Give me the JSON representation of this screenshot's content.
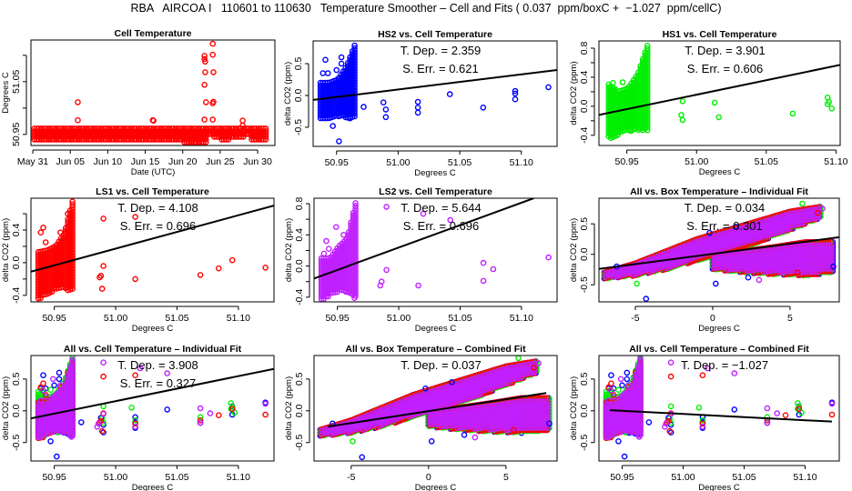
{
  "title": "RBA   AIRCOA I   110601 to 110630   Temperature Smoother – Cell and Fits ( 0.037  ppm/boxC +  −1.027  ppm/cellC)",
  "colors": {
    "hs2": "#0000ff",
    "hs1": "#00ee00",
    "ls1": "#ff0000",
    "ls2": "#c020ff",
    "cell": "#ff0000",
    "fit": "#000000"
  },
  "chart_data": [
    {
      "type": "scatter",
      "title": "Cell Temperature",
      "xlabel": "Date (UTC)",
      "ylabel": "Degrees C",
      "xlim": [
        -0.25,
        32.3
      ],
      "ylim": [
        50.929,
        51.129
      ],
      "xticks": [
        0,
        5,
        10,
        15,
        20,
        25,
        30
      ],
      "xticklabels": [
        "May 31",
        "Jun 05",
        "Jun 10",
        "Jun 15",
        "Jun 20",
        "Jun 25",
        "Jun 30"
      ],
      "yticks": [
        50.95,
        51.0,
        51.05,
        51.1
      ],
      "yticklabels": [
        "50.95",
        "",
        "51.05",
        ""
      ],
      "color": "cell",
      "daily_range": [
        [
          50.937,
          50.961
        ],
        [
          50.936,
          50.961
        ],
        [
          50.936,
          50.961
        ],
        [
          50.936,
          50.961
        ],
        [
          50.937,
          50.961
        ],
        [
          50.937,
          50.961
        ],
        [
          50.936,
          50.961
        ],
        [
          50.936,
          50.961
        ],
        [
          50.937,
          50.961
        ],
        [
          50.936,
          50.961
        ],
        [
          50.936,
          50.961
        ],
        [
          50.937,
          50.961
        ],
        [
          50.936,
          50.961
        ],
        [
          50.936,
          50.961
        ],
        [
          50.937,
          50.961
        ],
        [
          50.937,
          50.961
        ],
        [
          50.938,
          50.961
        ],
        [
          50.936,
          50.961
        ],
        [
          50.936,
          50.961
        ],
        [
          50.937,
          50.961
        ],
        [
          50.935,
          50.961
        ],
        [
          50.935,
          50.961
        ],
        [
          50.935,
          50.961
        ],
        [
          50.946,
          50.961
        ],
        [
          50.941,
          50.961
        ],
        [
          50.938,
          50.961
        ],
        [
          50.941,
          50.961
        ],
        [
          50.944,
          50.961
        ],
        [
          50.946,
          50.961
        ],
        [
          50.938,
          50.961
        ],
        [
          50.939,
          50.961
        ]
      ],
      "points": [
        [
          6,
          50.977
        ],
        [
          6,
          51.011
        ],
        [
          16,
          50.977
        ],
        [
          16.1,
          50.976
        ],
        [
          22.9,
          51.099
        ],
        [
          22.9,
          51.093
        ],
        [
          23,
          51.088
        ],
        [
          23,
          51.068
        ],
        [
          22.9,
          51.044
        ],
        [
          23.1,
          51.011
        ],
        [
          22.9,
          50.978
        ],
        [
          24,
          51.122
        ],
        [
          24,
          51.101
        ],
        [
          24.1,
          51.068
        ],
        [
          24.1,
          51.012
        ],
        [
          24,
          51.009
        ],
        [
          24,
          50.978
        ],
        [
          28,
          50.976
        ],
        [
          28,
          50.967
        ]
      ]
    },
    {
      "type": "scatter",
      "title": "HS2 vs. Cell Temperature",
      "xlabel": "Degrees C",
      "ylabel": "delta CO2 (ppm)",
      "xlim": [
        50.931,
        51.129
      ],
      "ylim": [
        -0.8,
        0.857
      ],
      "xticks": [
        50.95,
        51.0,
        51.05,
        51.1
      ],
      "xticklabels": [
        "50.95",
        "51.00",
        "51.05",
        "51.10"
      ],
      "yticks": [
        -0.5,
        0,
        0.5
      ],
      "yticklabels": [
        "-0.5",
        "0.0",
        "0.5"
      ],
      "annotations": [
        "T. Dep. =  2.359",
        "S. Err. =  0.621"
      ],
      "fit": [
        [
          50.931,
          -0.07
        ],
        [
          51.129,
          0.4
        ]
      ],
      "color": "hs2",
      "cluster": [
        [
          50.937,
          -0.38,
          0.2
        ],
        [
          50.944,
          -0.36,
          0.2
        ],
        [
          50.951,
          -0.35,
          0.25
        ],
        [
          50.958,
          -0.35,
          0.45
        ],
        [
          50.965,
          -0.37,
          0.8
        ]
      ],
      "points": [
        [
          50.939,
          0.35
        ],
        [
          50.941,
          0.56
        ],
        [
          50.943,
          0.35
        ],
        [
          50.947,
          -0.48
        ],
        [
          50.95,
          0.4
        ],
        [
          50.952,
          -0.72
        ],
        [
          50.954,
          0.6
        ],
        [
          50.954,
          0.5
        ],
        [
          50.956,
          -0.31
        ],
        [
          50.961,
          -0.36
        ],
        [
          50.972,
          -0.18
        ],
        [
          50.988,
          -0.11
        ],
        [
          50.99,
          -0.22
        ],
        [
          50.99,
          -0.34
        ],
        [
          51.016,
          -0.1
        ],
        [
          51.016,
          -0.19
        ],
        [
          51.016,
          -0.27
        ],
        [
          51.042,
          0.02
        ],
        [
          51.069,
          -0.19
        ],
        [
          51.095,
          0.07
        ],
        [
          51.095,
          0.03
        ],
        [
          51.095,
          -0.06
        ],
        [
          51.122,
          0.13
        ]
      ]
    },
    {
      "type": "scatter",
      "title": "HS1 vs. Cell Temperature",
      "xlabel": "Degrees C",
      "ylabel": "delta CO2 (ppm)",
      "xlim": [
        50.93,
        51.103
      ],
      "ylim": [
        -0.54,
        0.9
      ],
      "xticks": [
        50.95,
        51.0,
        51.05,
        51.1
      ],
      "xticklabels": [
        "50.95",
        "51.00",
        "51.05",
        "51.10"
      ],
      "yticks": [
        -0.4,
        -0.2,
        0,
        0.2,
        0.4,
        0.6,
        0.8
      ],
      "yticklabels": [
        "-0.4",
        "",
        "0.0",
        "",
        "0.4",
        "",
        "0.8"
      ],
      "annotations": [
        "T. Dep. =  3.901",
        "S. Err. =  0.606"
      ],
      "fit": [
        [
          50.93,
          -0.12
        ],
        [
          51.103,
          0.57
        ]
      ],
      "color": "hs1",
      "cluster": [
        [
          50.937,
          -0.45,
          0.3
        ],
        [
          50.944,
          -0.4,
          0.2
        ],
        [
          50.951,
          -0.35,
          0.25
        ],
        [
          50.958,
          -0.33,
          0.45
        ],
        [
          50.965,
          -0.35,
          0.85
        ]
      ],
      "points": [
        [
          50.94,
          0.32
        ],
        [
          50.947,
          0.33
        ],
        [
          50.953,
          -0.34
        ],
        [
          50.958,
          0.32
        ],
        [
          50.96,
          0.45
        ],
        [
          50.989,
          -0.12
        ],
        [
          50.99,
          0.07
        ],
        [
          50.99,
          -0.19
        ],
        [
          51.013,
          0.05
        ],
        [
          51.016,
          -0.15
        ],
        [
          51.069,
          -0.1
        ],
        [
          51.094,
          0.12
        ],
        [
          51.094,
          0.03
        ],
        [
          51.095,
          0.06
        ],
        [
          51.097,
          -0.03
        ]
      ]
    },
    {
      "type": "scatter",
      "title": "LS1 vs. Cell Temperature",
      "xlabel": "Degrees C",
      "ylabel": "delta CO2 (ppm)",
      "xlim": [
        50.931,
        51.129
      ],
      "ylim": [
        -0.48,
        0.79
      ],
      "xticks": [
        50.95,
        51.0,
        51.05,
        51.1
      ],
      "xticklabels": [
        "50.95",
        "51.00",
        "51.05",
        "51.10"
      ],
      "yticks": [
        -0.4,
        -0.2,
        0,
        0.2,
        0.4,
        0.6
      ],
      "yticklabels": [
        "-0.4",
        "",
        "0.0",
        "",
        "0.4",
        ""
      ],
      "annotations": [
        "T. Dep. =  4.108",
        "S. Err. =  0.696"
      ],
      "fit": [
        [
          50.931,
          -0.11
        ],
        [
          51.129,
          0.7
        ]
      ],
      "color": "ls1",
      "cluster": [
        [
          50.937,
          -0.45,
          0.13
        ],
        [
          50.944,
          -0.4,
          0.15
        ],
        [
          50.951,
          -0.33,
          0.2
        ],
        [
          50.958,
          -0.33,
          0.35
        ],
        [
          50.965,
          -0.35,
          0.76
        ]
      ],
      "points": [
        [
          50.939,
          0.37
        ],
        [
          50.941,
          0.43
        ],
        [
          50.943,
          0.25
        ],
        [
          50.955,
          0.37
        ],
        [
          50.961,
          0.6
        ],
        [
          50.987,
          -0.18
        ],
        [
          50.988,
          -0.16
        ],
        [
          50.989,
          -0.32
        ],
        [
          50.99,
          -0.04
        ],
        [
          50.99,
          0.54
        ],
        [
          51.016,
          0.56
        ],
        [
          51.016,
          -0.2
        ],
        [
          51.069,
          -0.15
        ],
        [
          51.084,
          -0.07
        ],
        [
          51.095,
          0.03
        ],
        [
          51.122,
          -0.06
        ]
      ]
    },
    {
      "type": "scatter",
      "title": "LS2 vs. Cell Temperature",
      "xlabel": "Degrees C",
      "ylabel": "delta CO2 (ppm)",
      "xlim": [
        50.931,
        51.129
      ],
      "ylim": [
        -0.46,
        0.87
      ],
      "xticks": [
        50.95,
        51.0,
        51.05,
        51.1
      ],
      "xticklabels": [
        "50.95",
        "51.00",
        "51.05",
        "51.10"
      ],
      "yticks": [
        -0.4,
        -0.2,
        0,
        0.2,
        0.4,
        0.6,
        0.8
      ],
      "yticklabels": [
        "-0.4",
        "",
        "0.0",
        "",
        "0.4",
        "",
        "0.8"
      ],
      "annotations": [
        "T. Dep. =  5.644",
        "S. Err. =  0.696"
      ],
      "fit": [
        [
          50.931,
          -0.16
        ],
        [
          51.11,
          0.87
        ]
      ],
      "color": "ls2",
      "cluster": [
        [
          50.937,
          -0.45,
          0.1
        ],
        [
          50.944,
          -0.38,
          0.1
        ],
        [
          50.951,
          -0.33,
          0.25
        ],
        [
          50.958,
          -0.33,
          0.35
        ],
        [
          50.965,
          -0.42,
          0.82
        ]
      ],
      "points": [
        [
          50.939,
          0.16
        ],
        [
          50.941,
          0.32
        ],
        [
          50.943,
          0.22
        ],
        [
          50.949,
          0.5
        ],
        [
          50.955,
          0.4
        ],
        [
          50.957,
          -0.33
        ],
        [
          50.964,
          -0.41
        ],
        [
          50.985,
          -0.25
        ],
        [
          50.986,
          -0.2
        ],
        [
          50.99,
          -0.05
        ],
        [
          50.99,
          0.76
        ],
        [
          51.016,
          -0.25
        ],
        [
          51.02,
          0.67
        ],
        [
          51.042,
          0.59
        ],
        [
          51.069,
          0.04
        ],
        [
          51.069,
          -0.19
        ],
        [
          51.077,
          -0.04
        ],
        [
          51.122,
          0.11
        ]
      ]
    },
    {
      "type": "scatter",
      "title": "All vs. Box Temperature – Individual Fit",
      "xlabel": "Degrees C",
      "ylabel": "delta CO2 (ppm)",
      "xlim": [
        -7.35,
        8.18
      ],
      "ylim": [
        -0.78,
        0.92
      ],
      "xticks": [
        -5,
        0,
        5
      ],
      "xticklabels": [
        "-5",
        "0",
        "5"
      ],
      "yticks": [
        -0.5,
        0,
        0.5
      ],
      "yticklabels": [
        "-0.5",
        "0.0",
        "0.5"
      ],
      "annotations": [
        "T. Dep. =  0.034",
        "S. Err. =  0.301"
      ],
      "fit": [
        [
          -7.35,
          -0.24
        ],
        [
          8.18,
          0.28
        ]
      ],
      "box_data": true
    },
    {
      "type": "scatter",
      "title": "All vs. Cell Temperature – Individual Fit",
      "xlabel": "Degrees C",
      "ylabel": "delta CO2 (ppm)",
      "xlim": [
        50.931,
        51.129
      ],
      "ylim": [
        -0.79,
        0.87
      ],
      "xticks": [
        50.95,
        51.0,
        51.05,
        51.1
      ],
      "xticklabels": [
        "50.95",
        "51.00",
        "51.05",
        "51.10"
      ],
      "yticks": [
        -0.5,
        0,
        0.5
      ],
      "yticklabels": [
        "-0.5",
        "0.0",
        "0.5"
      ],
      "annotations": [
        "T. Dep. =  3.908",
        "S. Err. =  0.327"
      ],
      "fit": [
        [
          50.931,
          -0.12
        ],
        [
          51.129,
          0.66
        ]
      ],
      "combine": [
        1,
        2,
        3,
        4
      ]
    },
    {
      "type": "scatter",
      "title": "All vs. Box Temperature – Combined Fit",
      "xlabel": "Degrees C",
      "ylabel": "delta CO2 (ppm)",
      "xlim": [
        -7.4,
        8.3
      ],
      "ylim": [
        -0.79,
        0.87
      ],
      "xticks": [
        -5,
        0,
        5
      ],
      "xticklabels": [
        "-5",
        "0",
        "5"
      ],
      "yticks": [
        -0.5,
        0,
        0.5
      ],
      "yticklabels": [
        "-0.5",
        "0.0",
        "0.5"
      ],
      "annotations": [
        "T. Dep. =  0.037"
      ],
      "fit": [
        [
          -6.5,
          -0.25
        ],
        [
          7.6,
          0.28
        ]
      ],
      "box_data": true
    },
    {
      "type": "scatter",
      "title": "All vs. Cell Temperature – Combined Fit",
      "xlabel": "Degrees C",
      "ylabel": "delta CO2 (ppm)",
      "xlim": [
        50.931,
        51.128
      ],
      "ylim": [
        -0.79,
        0.87
      ],
      "xticks": [
        50.95,
        51.0,
        51.05,
        51.1
      ],
      "xticklabels": [
        "50.95",
        "51.00",
        "51.05",
        "51.10"
      ],
      "yticks": [
        -0.5,
        0,
        0.5
      ],
      "yticklabels": [
        "-0.5",
        "0.0",
        "0.5"
      ],
      "annotations": [
        "T. Dep. =  −1.027"
      ],
      "fit": [
        [
          50.94,
          0.01
        ],
        [
          51.122,
          -0.17
        ]
      ],
      "combine": [
        1,
        2,
        3,
        4
      ]
    }
  ],
  "box_temperature_data": {
    "bands": [
      [
        [
          -7,
          -0.4,
          -0.3
        ],
        [
          -5,
          -0.35,
          -0.15
        ],
        [
          -3,
          -0.25,
          0.05
        ],
        [
          -1,
          -0.1,
          0.25
        ],
        [
          1,
          0.05,
          0.4
        ],
        [
          3,
          0.2,
          0.55
        ],
        [
          5,
          0.4,
          0.7
        ],
        [
          7,
          0.6,
          0.78
        ]
      ],
      [
        [
          0,
          -0.25,
          0.0
        ],
        [
          2,
          -0.3,
          0.05
        ],
        [
          4,
          -0.33,
          0.12
        ],
        [
          6,
          -0.35,
          0.2
        ],
        [
          7.8,
          -0.3,
          0.2
        ]
      ]
    ],
    "points": [
      [
        -4.3,
        -0.73,
        "hs2"
      ],
      [
        0.2,
        -0.48,
        "hs2"
      ],
      [
        -4.9,
        -0.48,
        "hs1"
      ],
      [
        2.3,
        -0.38,
        "hs2"
      ],
      [
        3,
        -0.42,
        "ls2"
      ],
      [
        6.8,
        0.68,
        "ls1"
      ],
      [
        7.1,
        0.75,
        "ls2"
      ],
      [
        5.8,
        0.83,
        "hs1"
      ],
      [
        -6.2,
        -0.2,
        "hs2"
      ],
      [
        -0.2,
        0.35,
        "hs2"
      ],
      [
        1.5,
        0.45,
        "hs2"
      ],
      [
        7.8,
        -0.2,
        "hs2"
      ],
      [
        5.5,
        -0.3,
        "ls1"
      ]
    ]
  }
}
